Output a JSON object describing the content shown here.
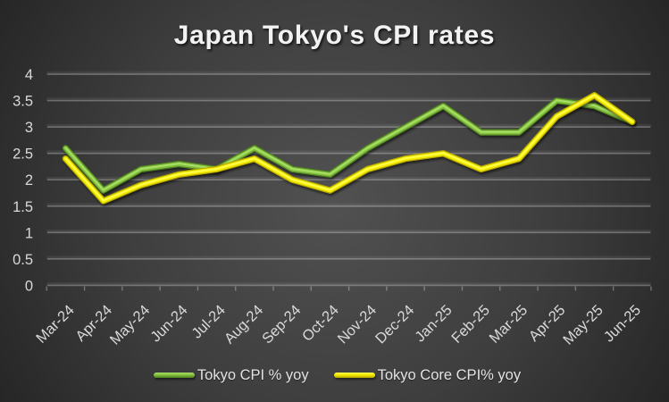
{
  "chart_data": {
    "type": "line",
    "title": "Japan Tokyo's CPI rates",
    "xlabel": "",
    "ylabel": "",
    "categories": [
      "Mar-24",
      "Apr-24",
      "May-24",
      "Jun-24",
      "Jul-24",
      "Aug-24",
      "Sep-24",
      "Oct-24",
      "Nov-24",
      "Dec-24",
      "Jan-25",
      "Feb-25",
      "Mar-25",
      "Apr-25",
      "May-25",
      "Jun-25"
    ],
    "series": [
      {
        "name": "Tokyo CPI % yoy",
        "values": [
          2.6,
          1.8,
          2.2,
          2.3,
          2.2,
          2.6,
          2.2,
          2.1,
          2.6,
          3.0,
          3.4,
          2.9,
          2.9,
          3.5,
          3.4,
          3.1
        ],
        "color": "#82c13e",
        "color_dark": "#4f7d22",
        "color_light": "#aade66"
      },
      {
        "name": "Tokyo Core CPI% yoy",
        "values": [
          2.4,
          1.6,
          1.9,
          2.1,
          2.2,
          2.4,
          2.0,
          1.8,
          2.2,
          2.4,
          2.5,
          2.2,
          2.4,
          3.2,
          3.6,
          3.1
        ],
        "color": "#f5e900",
        "color_dark": "#b3a700",
        "color_light": "#ffff4d"
      }
    ],
    "ylim": [
      0,
      4
    ],
    "ytick_step": 0.5,
    "ytick_labels": [
      "0",
      "0.5",
      "1",
      "1.5",
      "2",
      "2.5",
      "3",
      "3.5",
      "4"
    ],
    "grid": true,
    "legend_position": "bottom",
    "x_tick_label_rotation_deg": -45
  },
  "colors": {
    "background_center": "#515151",
    "background_edge": "#262626",
    "axis_text": "#d9d9d9",
    "title_text": "#f2f2f2",
    "gridline": "#ffffff"
  }
}
